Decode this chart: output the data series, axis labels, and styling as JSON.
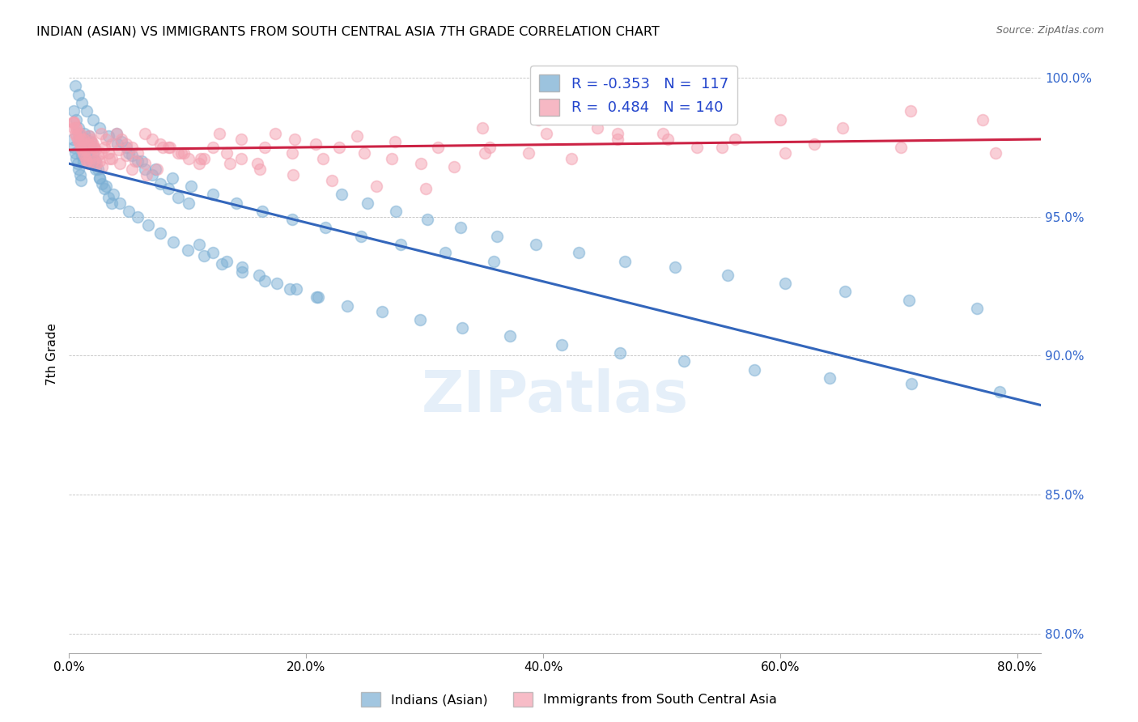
{
  "title": "INDIAN (ASIAN) VS IMMIGRANTS FROM SOUTH CENTRAL ASIA 7TH GRADE CORRELATION CHART",
  "source": "Source: ZipAtlas.com",
  "xlabel_ticks": [
    "0.0%",
    "20.0%",
    "40.0%",
    "60.0%",
    "80.0%"
  ],
  "ylabel_ticks": [
    "80.0%",
    "85.0%",
    "90.0%",
    "95.0%",
    "100.0%"
  ],
  "xlim": [
    0.0,
    0.82
  ],
  "ylim": [
    0.793,
    1.008
  ],
  "ylabel": "7th Grade",
  "legend_label1": "Indians (Asian)",
  "legend_label2": "Immigrants from South Central Asia",
  "R1": "-0.353",
  "N1": "117",
  "R2": "0.484",
  "N2": "140",
  "blue_color": "#7BAFD4",
  "pink_color": "#F4A0B0",
  "line_blue": "#3366BB",
  "line_pink": "#CC2244",
  "watermark": "ZIPatlas",
  "blue_x": [
    0.003,
    0.004,
    0.005,
    0.006,
    0.007,
    0.008,
    0.009,
    0.01,
    0.011,
    0.012,
    0.013,
    0.014,
    0.015,
    0.016,
    0.017,
    0.018,
    0.019,
    0.02,
    0.022,
    0.024,
    0.026,
    0.028,
    0.03,
    0.033,
    0.036,
    0.04,
    0.044,
    0.048,
    0.053,
    0.058,
    0.064,
    0.07,
    0.077,
    0.084,
    0.092,
    0.101,
    0.11,
    0.121,
    0.133,
    0.146,
    0.16,
    0.175,
    0.192,
    0.21,
    0.23,
    0.252,
    0.276,
    0.302,
    0.33,
    0.361,
    0.394,
    0.43,
    0.469,
    0.511,
    0.556,
    0.604,
    0.655,
    0.709,
    0.766,
    0.004,
    0.006,
    0.008,
    0.01,
    0.012,
    0.015,
    0.018,
    0.022,
    0.026,
    0.031,
    0.037,
    0.043,
    0.05,
    0.058,
    0.067,
    0.077,
    0.088,
    0.1,
    0.114,
    0.129,
    0.146,
    0.165,
    0.186,
    0.209,
    0.235,
    0.264,
    0.296,
    0.332,
    0.372,
    0.416,
    0.465,
    0.519,
    0.578,
    0.642,
    0.711,
    0.785,
    0.005,
    0.008,
    0.011,
    0.015,
    0.02,
    0.026,
    0.033,
    0.041,
    0.05,
    0.061,
    0.073,
    0.087,
    0.103,
    0.121,
    0.141,
    0.163,
    0.188,
    0.216,
    0.246,
    0.28,
    0.317,
    0.358
  ],
  "blue_y": [
    0.978,
    0.975,
    0.973,
    0.971,
    0.969,
    0.967,
    0.965,
    0.963,
    0.972,
    0.97,
    0.98,
    0.978,
    0.976,
    0.974,
    0.979,
    0.977,
    0.975,
    0.973,
    0.97,
    0.967,
    0.964,
    0.962,
    0.96,
    0.957,
    0.955,
    0.98,
    0.977,
    0.975,
    0.972,
    0.97,
    0.967,
    0.965,
    0.962,
    0.96,
    0.957,
    0.955,
    0.94,
    0.937,
    0.934,
    0.932,
    0.929,
    0.926,
    0.924,
    0.921,
    0.958,
    0.955,
    0.952,
    0.949,
    0.946,
    0.943,
    0.94,
    0.937,
    0.934,
    0.932,
    0.929,
    0.926,
    0.923,
    0.92,
    0.917,
    0.988,
    0.985,
    0.982,
    0.979,
    0.976,
    0.973,
    0.97,
    0.967,
    0.964,
    0.961,
    0.958,
    0.955,
    0.952,
    0.95,
    0.947,
    0.944,
    0.941,
    0.938,
    0.936,
    0.933,
    0.93,
    0.927,
    0.924,
    0.921,
    0.918,
    0.916,
    0.913,
    0.91,
    0.907,
    0.904,
    0.901,
    0.898,
    0.895,
    0.892,
    0.89,
    0.887,
    0.997,
    0.994,
    0.991,
    0.988,
    0.985,
    0.982,
    0.979,
    0.976,
    0.973,
    0.97,
    0.967,
    0.964,
    0.961,
    0.958,
    0.955,
    0.952,
    0.949,
    0.946,
    0.943,
    0.94,
    0.937,
    0.934
  ],
  "pink_x": [
    0.003,
    0.004,
    0.005,
    0.006,
    0.007,
    0.008,
    0.009,
    0.01,
    0.011,
    0.012,
    0.013,
    0.014,
    0.015,
    0.016,
    0.017,
    0.018,
    0.019,
    0.02,
    0.021,
    0.022,
    0.024,
    0.026,
    0.028,
    0.03,
    0.033,
    0.036,
    0.04,
    0.044,
    0.048,
    0.053,
    0.058,
    0.064,
    0.07,
    0.077,
    0.084,
    0.092,
    0.101,
    0.11,
    0.121,
    0.133,
    0.145,
    0.159,
    0.174,
    0.19,
    0.208,
    0.228,
    0.249,
    0.272,
    0.297,
    0.325,
    0.355,
    0.388,
    0.424,
    0.463,
    0.505,
    0.551,
    0.6,
    0.653,
    0.71,
    0.771,
    0.004,
    0.006,
    0.008,
    0.01,
    0.012,
    0.014,
    0.017,
    0.02,
    0.023,
    0.027,
    0.031,
    0.036,
    0.042,
    0.048,
    0.056,
    0.064,
    0.074,
    0.085,
    0.097,
    0.111,
    0.127,
    0.145,
    0.165,
    0.188,
    0.214,
    0.243,
    0.275,
    0.311,
    0.351,
    0.396,
    0.446,
    0.501,
    0.562,
    0.629,
    0.702,
    0.782,
    0.004,
    0.006,
    0.009,
    0.012,
    0.016,
    0.021,
    0.027,
    0.034,
    0.043,
    0.053,
    0.065,
    0.079,
    0.095,
    0.114,
    0.136,
    0.161,
    0.189,
    0.222,
    0.259,
    0.301,
    0.349,
    0.403,
    0.463,
    0.53,
    0.604
  ],
  "pink_y": [
    0.984,
    0.982,
    0.98,
    0.979,
    0.978,
    0.977,
    0.976,
    0.975,
    0.974,
    0.973,
    0.972,
    0.971,
    0.97,
    0.969,
    0.979,
    0.978,
    0.977,
    0.976,
    0.975,
    0.974,
    0.972,
    0.97,
    0.968,
    0.975,
    0.973,
    0.971,
    0.98,
    0.978,
    0.976,
    0.975,
    0.973,
    0.98,
    0.978,
    0.976,
    0.975,
    0.973,
    0.971,
    0.969,
    0.975,
    0.973,
    0.971,
    0.969,
    0.98,
    0.978,
    0.976,
    0.975,
    0.973,
    0.971,
    0.969,
    0.968,
    0.975,
    0.973,
    0.971,
    0.98,
    0.978,
    0.975,
    0.985,
    0.982,
    0.988,
    0.985,
    0.984,
    0.982,
    0.98,
    0.978,
    0.976,
    0.974,
    0.972,
    0.97,
    0.969,
    0.98,
    0.978,
    0.976,
    0.974,
    0.972,
    0.97,
    0.969,
    0.967,
    0.975,
    0.973,
    0.971,
    0.98,
    0.978,
    0.975,
    0.973,
    0.971,
    0.979,
    0.977,
    0.975,
    0.973,
    0.985,
    0.982,
    0.98,
    0.978,
    0.976,
    0.975,
    0.973,
    0.984,
    0.982,
    0.98,
    0.978,
    0.976,
    0.975,
    0.973,
    0.971,
    0.969,
    0.967,
    0.965,
    0.975,
    0.973,
    0.971,
    0.969,
    0.967,
    0.965,
    0.963,
    0.961,
    0.96,
    0.982,
    0.98,
    0.978,
    0.975,
    0.973
  ]
}
